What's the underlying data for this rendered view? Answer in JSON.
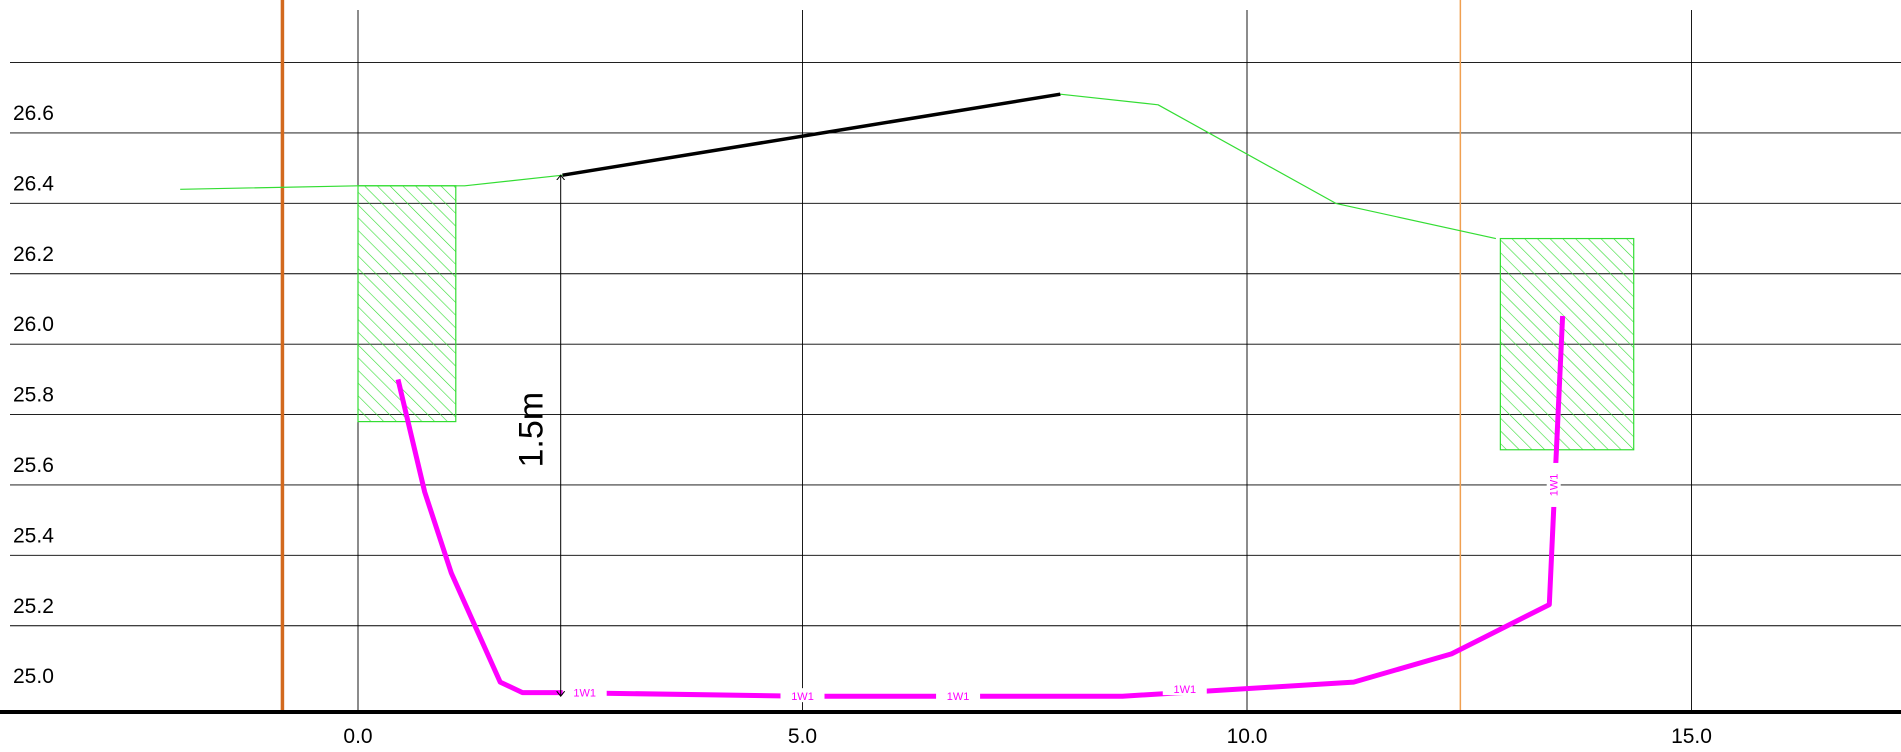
{
  "chart_data": {
    "type": "line",
    "title": "",
    "xlabel": "",
    "ylabel": "",
    "xlim": [
      -4.0,
      17.4
    ],
    "ylim": [
      24.95,
      26.96
    ],
    "x_ticks": [
      0,
      5,
      10,
      15
    ],
    "x_tick_labels": [
      "0.0",
      "5.0",
      "10.0",
      "15.0"
    ],
    "y_ticks": [
      25.0,
      25.2,
      25.4,
      25.6,
      25.8,
      26.0,
      26.2,
      26.4,
      26.6,
      26.8
    ],
    "y_tick_labels": [
      "25.0",
      "25.2",
      "25.4",
      "25.6",
      "25.8",
      "26.0",
      "26.2",
      "26.4",
      "26.6",
      ""
    ],
    "grid": true,
    "vertical_markers": [
      {
        "x": -0.85,
        "color": "#D2691E",
        "weight": "thick"
      },
      {
        "x": 12.4,
        "color": "#F0A050",
        "weight": "thin"
      }
    ],
    "series": [
      {
        "color": "#33DD33",
        "style": "ground-profile",
        "x": [
          -2.0,
          0.0,
          1.2,
          2.3,
          7.9,
          9.0,
          11.0,
          12.8
        ],
        "y": [
          26.44,
          26.45,
          26.45,
          26.48,
          26.71,
          26.68,
          26.4,
          26.3
        ]
      },
      {
        "color": "#000000",
        "style": "bold-segment",
        "x": [
          2.3,
          7.9
        ],
        "y": [
          26.48,
          26.71
        ]
      },
      {
        "color": "#FF00FF",
        "style": "thick-profile",
        "segment_label": "1W1",
        "x": [
          0.45,
          0.75,
          1.05,
          1.6,
          1.85,
          2.3,
          5.0,
          8.6,
          11.2,
          12.3,
          13.4,
          13.55
        ],
        "y": [
          25.9,
          25.58,
          25.35,
          25.04,
          25.01,
          25.01,
          25.0,
          25.0,
          25.04,
          25.12,
          25.26,
          26.08
        ]
      }
    ],
    "hatched_boxes": [
      {
        "x": [
          0.0,
          1.1
        ],
        "y": [
          25.78,
          26.45
        ],
        "color": "#33DD33"
      },
      {
        "x": [
          12.85,
          14.35
        ],
        "y": [
          25.7,
          26.3
        ],
        "color": "#33DD33"
      }
    ],
    "dimension": {
      "label": "1.5m",
      "x": 2.28,
      "y": [
        25.0,
        26.48
      ]
    },
    "segment_labels": [
      {
        "text": "1W1",
        "x": 2.55,
        "y": 25.01
      },
      {
        "text": "1W1",
        "x": 5.0,
        "y": 25.0
      },
      {
        "text": "1W1",
        "x": 6.75,
        "y": 25.0
      },
      {
        "text": "1W1",
        "x": 9.3,
        "y": 25.02
      },
      {
        "text": "1W1",
        "x": 13.45,
        "y": 25.6,
        "vertical": true
      }
    ]
  }
}
